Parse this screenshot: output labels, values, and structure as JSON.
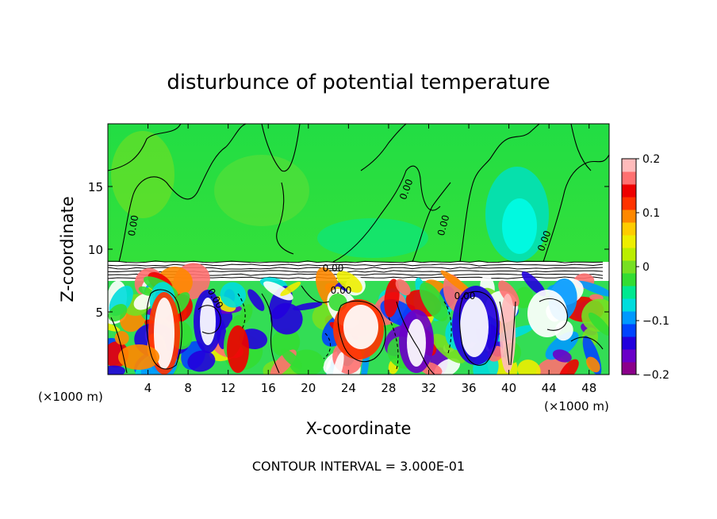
{
  "chart_data": {
    "type": "heatmap",
    "title": "disturbunce of potential temperature",
    "xlabel": "X-coordinate",
    "ylabel": "Z-coordinate",
    "x_unit": "(×1000 m)",
    "z_unit": "(×1000 m)",
    "xlim": [
      0,
      50
    ],
    "ylim": [
      0,
      20
    ],
    "x_ticks": [
      4,
      8,
      12,
      16,
      20,
      24,
      28,
      32,
      36,
      40,
      44,
      48
    ],
    "y_ticks": [
      5,
      10,
      15
    ],
    "contour_labels": [
      "0.00",
      "0.00",
      "0.00",
      "0.00",
      "0.00",
      "0.00",
      "0.00",
      "0.00"
    ],
    "colorbar": {
      "min": -0.2,
      "max": 0.2,
      "ticks": [
        0.2,
        0.1,
        0,
        -0.1,
        -0.2
      ],
      "tick_labels": [
        "0.2",
        "0.1",
        "0",
        "−0.1",
        "−0.2"
      ],
      "colors": [
        "#8b008b",
        "#6a00c8",
        "#2200dd",
        "#0044ff",
        "#0099ff",
        "#00dddd",
        "#00e890",
        "#33dd33",
        "#77e022",
        "#bbee00",
        "#eeee00",
        "#ffcc00",
        "#ff8800",
        "#ff3300",
        "#ee0000",
        "#ff7070",
        "#ffbbbb"
      ]
    },
    "footer": "CONTOUR INTERVAL = 3.000E-01"
  }
}
